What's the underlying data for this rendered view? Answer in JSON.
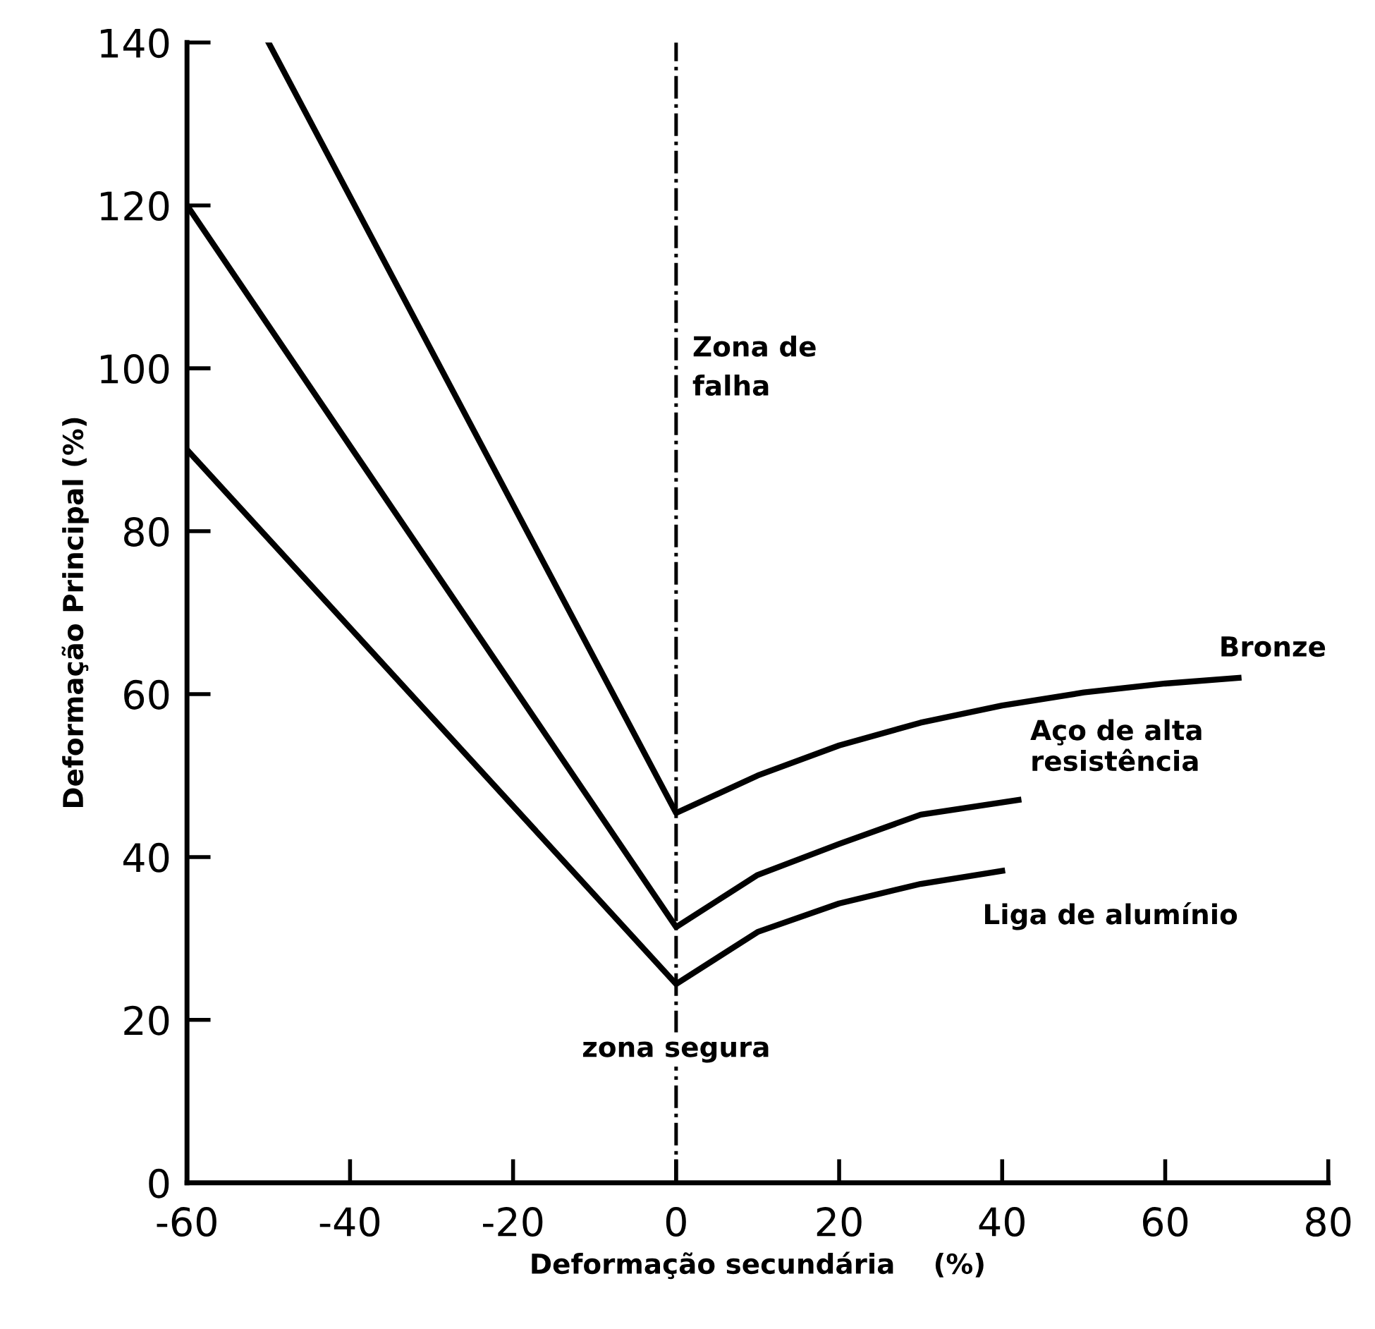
{
  "chart_data": {
    "type": "line",
    "xlabel": "Deformação secundária    (%)",
    "ylabel": "Deformação Principal (%)",
    "series": [
      {
        "name": "Bronze",
        "color": "#000000",
        "x": [
          -50,
          0,
          10,
          20,
          30,
          40,
          50,
          60,
          69
        ],
        "values": [
          140,
          45.4,
          50,
          53.7,
          56.5,
          58.6,
          60.2,
          61.3,
          62
        ]
      },
      {
        "name": "Aço de alta\nresistência",
        "color": "#000000",
        "x": [
          -60,
          0,
          10,
          20,
          30,
          42
        ],
        "values": [
          120,
          31.4,
          37.8,
          41.6,
          45.2,
          47
        ]
      },
      {
        "name": "Liga de alumínio",
        "color": "#000000",
        "x": [
          -60,
          0,
          10,
          20,
          30,
          40
        ],
        "values": [
          90,
          24.4,
          30.8,
          34.3,
          36.7,
          38.3
        ]
      }
    ],
    "xlim": [
      -60,
      80
    ],
    "ylim": [
      0,
      140
    ],
    "xticks": [
      -60,
      -40,
      -20,
      0,
      20,
      40,
      60,
      80
    ],
    "yticks": [
      0,
      20,
      40,
      60,
      80,
      100,
      120,
      140
    ],
    "ref_lines": [
      {
        "axis": "x",
        "value": 0,
        "color": "#000000",
        "line_style": "dashdot"
      }
    ],
    "annotations": [
      "Zona de\nfalha",
      "zona segura"
    ],
    "grid": false,
    "legend": false,
    "marker": "none",
    "line_style": "solid"
  }
}
